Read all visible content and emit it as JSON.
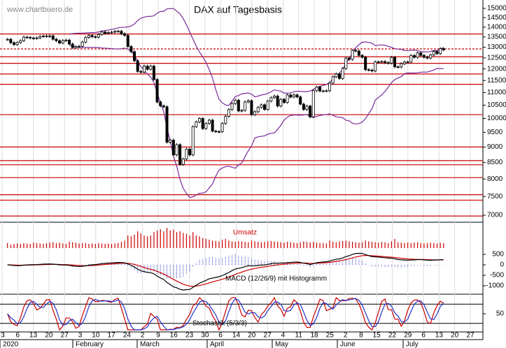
{
  "chart_data": {
    "type": "candlestick",
    "title": "DAX auf Tagesbasis",
    "watermark": "www.chartbuero.de",
    "log": true,
    "ylim": [
      7000,
      15000
    ],
    "yticks": [
      7000,
      7500,
      8000,
      8500,
      9000,
      9500,
      10000,
      10500,
      11000,
      11500,
      12000,
      12500,
      13000,
      13500,
      14000,
      14500,
      15000
    ],
    "levels": [
      13650,
      12550,
      12250,
      11780,
      11340,
      10140,
      9000,
      8560,
      8430,
      8040,
      7550,
      7400,
      6980
    ],
    "dashed_levels": [
      12920
    ],
    "level_color": "#cc0000",
    "band_color": "#7a2a9a",
    "closes": [
      13385,
      13219,
      13127,
      13226,
      13320,
      13495,
      13483,
      13451,
      13432,
      13456,
      13526,
      13548,
      13526,
      13555,
      13388,
      13315,
      13204,
      13323,
      13345,
      13157,
      12982,
      13033,
      13045,
      13250,
      13478,
      13575,
      13513,
      13494,
      13627,
      13750,
      13680,
      13723,
      13744,
      13783,
      13789,
      13664,
      13579,
      13035,
      12790,
      12367,
      11890,
      11857,
      12127,
      11985,
      12127,
      11542,
      10625,
      10475,
      10439,
      9162,
      9232,
      8742,
      9079,
      8441,
      8610,
      8929,
      8742,
      9701,
      9874,
      10000,
      9633,
      9815,
      9936,
      9544,
      9526,
      9525,
      9815,
      10075,
      10333,
      10564,
      10696,
      10279,
      10301,
      10625,
      10676,
      10138,
      10250,
      10415,
      10514,
      10336,
      10659,
      10795,
      10861,
      10467,
      10729,
      10606,
      10905,
      10820,
      10904,
      10825,
      10542,
      10337,
      10465,
      10058,
      11075,
      11223,
      11065,
      11066,
      11074,
      11391,
      11658,
      11781,
      11586,
      12021,
      12487,
      12431,
      12848,
      12820,
      12615,
      12530,
      11970,
      11949,
      11911,
      12316,
      12315,
      12332,
      12281,
      12261,
      12523,
      12093,
      12089,
      12232,
      12311,
      12310,
      12608,
      12528,
      12733,
      12617,
      12528,
      12490,
      12633,
      12800,
      12697,
      12931,
      12874
    ],
    "volume_label": "Umsatz",
    "volume_color": "#cc0000",
    "volume": [
      12,
      8,
      10,
      11,
      10,
      12,
      11,
      10,
      13,
      12,
      11,
      10,
      12,
      13,
      14,
      12,
      13,
      11,
      10,
      15,
      14,
      13,
      11,
      12,
      12,
      10,
      11,
      10,
      12,
      11,
      10,
      11,
      10,
      11,
      12,
      15,
      18,
      30,
      28,
      32,
      40,
      35,
      30,
      28,
      30,
      38,
      42,
      45,
      40,
      48,
      42,
      44,
      38,
      40,
      36,
      34,
      30,
      38,
      30,
      28,
      24,
      22,
      20,
      18,
      17,
      16,
      20,
      22,
      18,
      16,
      15,
      17,
      16,
      15,
      14,
      18,
      16,
      15,
      14,
      15,
      16,
      17,
      16,
      15,
      14,
      13,
      15,
      14,
      13,
      12,
      14,
      16,
      15,
      14,
      15,
      13,
      12,
      12,
      11,
      18,
      15,
      14,
      16,
      17,
      18,
      16,
      15,
      14,
      13,
      14,
      18,
      16,
      15,
      14,
      13,
      15,
      14,
      12,
      16,
      22,
      14,
      13,
      12,
      13,
      12,
      13,
      14,
      12,
      11,
      12,
      13,
      12,
      11,
      13,
      12
    ],
    "macd_label": "MACD (12/26/9) mit Histogramm",
    "macd_yticks": [
      -1000,
      -500,
      0,
      500
    ],
    "stoch_label": "Stochastik (5/3/3)",
    "stoch_yticks": [
      50
    ],
    "x_day_labels": [
      "3",
      "6",
      "13",
      "20",
      "27",
      "3",
      "10",
      "17",
      "24",
      "2",
      "9",
      "16",
      "23",
      "30",
      "6",
      "14",
      "20",
      "27",
      "4",
      "11",
      "18",
      "25",
      "2",
      "8",
      "15",
      "22",
      "29",
      "6",
      "13",
      "20",
      "27"
    ],
    "x_month_labels": [
      "2020",
      "February",
      "March",
      "April",
      "May",
      "June",
      "July"
    ]
  }
}
